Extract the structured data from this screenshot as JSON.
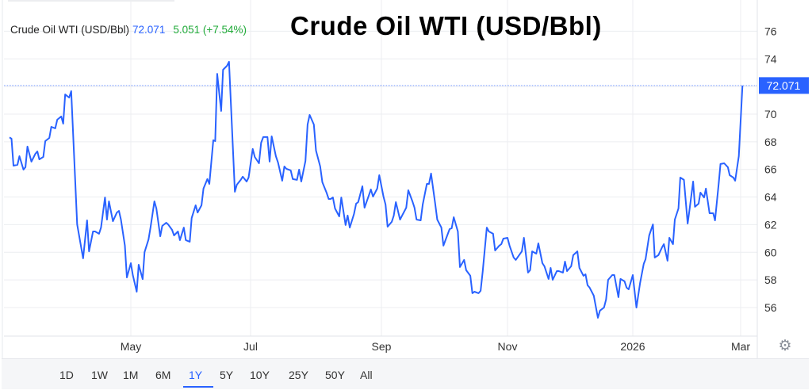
{
  "legend": {
    "name": "Crude Oil WTI (USD/Bbl)",
    "price": "72.071",
    "change": "5.051 (+7.54%)"
  },
  "title": "Crude Oil WTI (USD/Bbl)",
  "colors": {
    "line": "#2962ff",
    "up": "#22ab3a",
    "grid": "#eceef1",
    "bottom_bar": "#f5f6f8"
  },
  "ranges": [
    "1D",
    "1W",
    "1M",
    "6M",
    "1Y",
    "5Y",
    "10Y",
    "25Y",
    "50Y",
    "All"
  ],
  "active_range": "1Y",
  "settings_icon": "gear-icon",
  "chart_data": {
    "type": "line",
    "title": "Crude Oil WTI (USD/Bbl)",
    "ylim": [
      54.5,
      78
    ],
    "y_ticks": [
      56,
      58,
      60,
      62,
      64,
      66,
      68,
      70,
      72,
      74,
      76
    ],
    "x_ticks": [
      {
        "date": "2025-05-01",
        "label": "May"
      },
      {
        "date": "2025-07-01",
        "label": "Jul"
      },
      {
        "date": "2025-09-01",
        "label": "Sep"
      },
      {
        "date": "2025-11-01",
        "label": "Nov"
      },
      {
        "date": "2026-01-01",
        "label": "2026"
      },
      {
        "date": "2026-03-01",
        "label": "Mar"
      }
    ],
    "grid": true,
    "last_value_label": "72.071",
    "series": [
      {
        "points": [
          [
            "2025-03-01",
            68.32
          ],
          [
            "2025-03-02",
            68.22
          ],
          [
            "2025-03-03",
            66.27
          ],
          [
            "2025-03-05",
            66.33
          ],
          [
            "2025-03-06",
            66.96
          ],
          [
            "2025-03-08",
            65.98
          ],
          [
            "2025-03-09",
            66.16
          ],
          [
            "2025-03-10",
            67.65
          ],
          [
            "2025-03-12",
            66.56
          ],
          [
            "2025-03-14",
            67.13
          ],
          [
            "2025-03-15",
            67.3
          ],
          [
            "2025-03-16",
            66.73
          ],
          [
            "2025-03-18",
            66.9
          ],
          [
            "2025-03-19",
            68.05
          ],
          [
            "2025-03-21",
            68.28
          ],
          [
            "2025-03-22",
            69.08
          ],
          [
            "2025-03-24",
            68.97
          ],
          [
            "2025-03-25",
            69.6
          ],
          [
            "2025-03-27",
            69.83
          ],
          [
            "2025-03-28",
            69.31
          ],
          [
            "2025-03-29",
            71.43
          ],
          [
            "2025-03-31",
            71.2
          ],
          [
            "2025-04-01",
            71.66
          ],
          [
            "2025-04-04",
            62.02
          ],
          [
            "2025-04-07",
            59.56
          ],
          [
            "2025-04-09",
            62.31
          ],
          [
            "2025-04-10",
            60.07
          ],
          [
            "2025-04-12",
            61.51
          ],
          [
            "2025-04-13",
            61.51
          ],
          [
            "2025-04-15",
            61.34
          ],
          [
            "2025-04-16",
            61.79
          ],
          [
            "2025-04-18",
            63.97
          ],
          [
            "2025-04-19",
            62.37
          ],
          [
            "2025-04-20",
            63.69
          ],
          [
            "2025-04-22",
            62.25
          ],
          [
            "2025-04-24",
            62.88
          ],
          [
            "2025-04-25",
            63.0
          ],
          [
            "2025-04-26",
            62.37
          ],
          [
            "2025-04-28",
            60.48
          ],
          [
            "2025-04-29",
            58.18
          ],
          [
            "2025-05-01",
            59.21
          ],
          [
            "2025-05-02",
            58.35
          ],
          [
            "2025-05-04",
            57.15
          ],
          [
            "2025-05-05",
            59.1
          ],
          [
            "2025-05-07",
            58.06
          ],
          [
            "2025-05-08",
            60.01
          ],
          [
            "2025-05-10",
            60.93
          ],
          [
            "2025-05-11",
            61.79
          ],
          [
            "2025-05-13",
            63.69
          ],
          [
            "2025-05-14",
            63.17
          ],
          [
            "2025-05-16",
            61.16
          ],
          [
            "2025-05-17",
            61.91
          ],
          [
            "2025-05-19",
            62.14
          ],
          [
            "2025-05-20",
            62.02
          ],
          [
            "2025-05-22",
            61.62
          ],
          [
            "2025-05-23",
            61.22
          ],
          [
            "2025-05-25",
            61.51
          ],
          [
            "2025-05-26",
            60.88
          ],
          [
            "2025-05-28",
            61.79
          ],
          [
            "2025-05-29",
            60.88
          ],
          [
            "2025-05-31",
            60.76
          ],
          [
            "2025-06-01",
            62.48
          ],
          [
            "2025-06-03",
            63.4
          ],
          [
            "2025-06-04",
            62.88
          ],
          [
            "2025-06-06",
            63.4
          ],
          [
            "2025-06-07",
            64.61
          ],
          [
            "2025-06-09",
            65.3
          ],
          [
            "2025-06-10",
            64.95
          ],
          [
            "2025-06-12",
            68.11
          ],
          [
            "2025-06-13",
            68.05
          ],
          [
            "2025-06-14",
            72.92
          ],
          [
            "2025-06-16",
            70.23
          ],
          [
            "2025-06-17",
            73.21
          ],
          [
            "2025-06-19",
            73.5
          ],
          [
            "2025-06-20",
            73.79
          ],
          [
            "2025-06-23",
            64.38
          ],
          [
            "2025-06-24",
            64.89
          ],
          [
            "2025-06-26",
            65.24
          ],
          [
            "2025-06-27",
            65.47
          ],
          [
            "2025-06-29",
            65.12
          ],
          [
            "2025-06-30",
            65.41
          ],
          [
            "2025-07-02",
            67.48
          ],
          [
            "2025-07-03",
            66.9
          ],
          [
            "2025-07-05",
            66.44
          ],
          [
            "2025-07-06",
            67.93
          ],
          [
            "2025-07-07",
            68.34
          ],
          [
            "2025-07-09",
            68.34
          ],
          [
            "2025-07-10",
            66.56
          ],
          [
            "2025-07-11",
            68.39
          ],
          [
            "2025-07-13",
            66.96
          ],
          [
            "2025-07-14",
            66.5
          ],
          [
            "2025-07-16",
            65.18
          ],
          [
            "2025-07-17",
            66.21
          ],
          [
            "2025-07-18",
            66.04
          ],
          [
            "2025-07-20",
            65.93
          ],
          [
            "2025-07-21",
            65.3
          ],
          [
            "2025-07-23",
            65.24
          ],
          [
            "2025-07-24",
            65.98
          ],
          [
            "2025-07-25",
            65.12
          ],
          [
            "2025-07-27",
            66.61
          ],
          [
            "2025-07-28",
            69.25
          ],
          [
            "2025-07-29",
            69.94
          ],
          [
            "2025-07-31",
            69.25
          ],
          [
            "2025-08-01",
            67.36
          ],
          [
            "2025-08-03",
            66.21
          ],
          [
            "2025-08-04",
            65.07
          ],
          [
            "2025-08-06",
            64.32
          ],
          [
            "2025-08-07",
            63.86
          ],
          [
            "2025-08-08",
            63.86
          ],
          [
            "2025-08-09",
            63.97
          ],
          [
            "2025-08-10",
            63.17
          ],
          [
            "2025-08-12",
            62.6
          ],
          [
            "2025-08-13",
            63.97
          ],
          [
            "2025-08-15",
            61.97
          ],
          [
            "2025-08-16",
            62.66
          ],
          [
            "2025-08-17",
            61.79
          ],
          [
            "2025-08-19",
            62.77
          ],
          [
            "2025-08-20",
            63.52
          ],
          [
            "2025-08-21",
            63.63
          ],
          [
            "2025-08-23",
            64.78
          ],
          [
            "2025-08-24",
            63.23
          ],
          [
            "2025-08-26",
            64.09
          ],
          [
            "2025-08-27",
            64.55
          ],
          [
            "2025-08-28",
            64.03
          ],
          [
            "2025-08-30",
            64.61
          ],
          [
            "2025-08-31",
            65.58
          ],
          [
            "2025-09-02",
            64.03
          ],
          [
            "2025-09-03",
            63.46
          ],
          [
            "2025-09-04",
            61.85
          ],
          [
            "2025-09-06",
            62.2
          ],
          [
            "2025-09-07",
            62.66
          ],
          [
            "2025-09-08",
            63.63
          ],
          [
            "2025-09-10",
            62.37
          ],
          [
            "2025-09-11",
            62.66
          ],
          [
            "2025-09-13",
            63.23
          ],
          [
            "2025-09-14",
            64.49
          ],
          [
            "2025-09-16",
            63.69
          ],
          [
            "2025-09-17",
            63.23
          ],
          [
            "2025-09-18",
            62.37
          ],
          [
            "2025-09-20",
            62.31
          ],
          [
            "2025-09-21",
            63.46
          ],
          [
            "2025-09-23",
            64.95
          ],
          [
            "2025-09-24",
            64.95
          ],
          [
            "2025-09-25",
            65.7
          ],
          [
            "2025-09-27",
            63.52
          ],
          [
            "2025-09-28",
            62.37
          ],
          [
            "2025-09-30",
            61.79
          ],
          [
            "2025-10-01",
            60.48
          ],
          [
            "2025-10-02",
            60.88
          ],
          [
            "2025-10-04",
            61.68
          ],
          [
            "2025-10-05",
            61.74
          ],
          [
            "2025-10-06",
            62.54
          ],
          [
            "2025-10-08",
            61.51
          ],
          [
            "2025-10-09",
            58.93
          ],
          [
            "2025-10-11",
            59.45
          ],
          [
            "2025-10-12",
            58.7
          ],
          [
            "2025-10-14",
            58.3
          ],
          [
            "2025-10-15",
            57.04
          ],
          [
            "2025-10-16",
            57.15
          ],
          [
            "2025-10-18",
            57.04
          ],
          [
            "2025-10-19",
            57.21
          ],
          [
            "2025-10-20",
            58.59
          ],
          [
            "2025-10-22",
            61.79
          ],
          [
            "2025-10-23",
            61.51
          ],
          [
            "2025-10-25",
            61.34
          ],
          [
            "2025-10-26",
            60.13
          ],
          [
            "2025-10-28",
            60.48
          ],
          [
            "2025-10-29",
            60.59
          ],
          [
            "2025-10-30",
            60.99
          ],
          [
            "2025-11-01",
            61.05
          ],
          [
            "2025-11-02",
            60.48
          ],
          [
            "2025-11-04",
            59.62
          ],
          [
            "2025-11-05",
            59.45
          ],
          [
            "2025-11-08",
            60.07
          ],
          [
            "2025-11-09",
            61.05
          ],
          [
            "2025-11-11",
            58.53
          ],
          [
            "2025-11-12",
            58.7
          ],
          [
            "2025-11-13",
            60.07
          ],
          [
            "2025-11-15",
            59.9
          ],
          [
            "2025-11-16",
            60.65
          ],
          [
            "2025-11-18",
            59.21
          ],
          [
            "2025-11-19",
            58.99
          ],
          [
            "2025-11-21",
            58.07
          ],
          [
            "2025-11-22",
            58.87
          ],
          [
            "2025-11-23",
            58.01
          ],
          [
            "2025-11-25",
            58.64
          ],
          [
            "2025-11-26",
            58.64
          ],
          [
            "2025-11-28",
            58.53
          ],
          [
            "2025-11-29",
            59.33
          ],
          [
            "2025-11-30",
            58.64
          ],
          [
            "2025-12-02",
            58.99
          ],
          [
            "2025-12-03",
            59.79
          ],
          [
            "2025-12-05",
            60.07
          ],
          [
            "2025-12-06",
            58.87
          ],
          [
            "2025-12-08",
            58.3
          ],
          [
            "2025-12-09",
            58.41
          ],
          [
            "2025-12-10",
            57.61
          ],
          [
            "2025-12-11",
            57.44
          ],
          [
            "2025-12-13",
            56.86
          ],
          [
            "2025-12-15",
            55.26
          ],
          [
            "2025-12-16",
            55.78
          ],
          [
            "2025-12-18",
            56.0
          ],
          [
            "2025-12-19",
            56.58
          ],
          [
            "2025-12-20",
            58.01
          ],
          [
            "2025-12-22",
            58.35
          ],
          [
            "2025-12-23",
            58.35
          ],
          [
            "2025-12-25",
            56.75
          ],
          [
            "2025-12-26",
            58.07
          ],
          [
            "2025-12-28",
            57.9
          ],
          [
            "2025-12-29",
            57.44
          ],
          [
            "2025-12-30",
            57.32
          ],
          [
            "2026-01-01",
            58.35
          ],
          [
            "2026-01-03",
            56.0
          ],
          [
            "2026-01-05",
            57.78
          ],
          [
            "2026-01-07",
            59.16
          ],
          [
            "2026-01-08",
            59.5
          ],
          [
            "2026-01-10",
            61.22
          ],
          [
            "2026-01-12",
            62.02
          ],
          [
            "2026-01-13",
            59.62
          ],
          [
            "2026-01-15",
            59.79
          ],
          [
            "2026-01-17",
            60.36
          ],
          [
            "2026-01-18",
            60.59
          ],
          [
            "2026-01-20",
            59.39
          ],
          [
            "2026-01-21",
            61.05
          ],
          [
            "2026-01-23",
            60.59
          ],
          [
            "2026-01-24",
            62.37
          ],
          [
            "2026-01-26",
            63.17
          ],
          [
            "2026-01-27",
            65.41
          ],
          [
            "2026-01-29",
            65.24
          ],
          [
            "2026-01-31",
            62.08
          ],
          [
            "2026-02-01",
            63.06
          ],
          [
            "2026-02-03",
            65.12
          ],
          [
            "2026-02-04",
            63.29
          ],
          [
            "2026-02-06",
            63.52
          ],
          [
            "2026-02-07",
            64.32
          ],
          [
            "2026-02-09",
            63.97
          ],
          [
            "2026-02-10",
            64.61
          ],
          [
            "2026-02-12",
            62.83
          ],
          [
            "2026-02-14",
            62.83
          ],
          [
            "2026-02-15",
            62.31
          ],
          [
            "2026-02-17",
            64.95
          ],
          [
            "2026-02-18",
            66.39
          ],
          [
            "2026-02-20",
            66.44
          ],
          [
            "2026-02-22",
            66.16
          ],
          [
            "2026-02-23",
            65.58
          ],
          [
            "2026-02-25",
            65.41
          ],
          [
            "2026-02-26",
            65.18
          ],
          [
            "2026-02-28",
            66.96
          ],
          [
            "2026-03-02",
            72.071
          ]
        ]
      }
    ]
  }
}
